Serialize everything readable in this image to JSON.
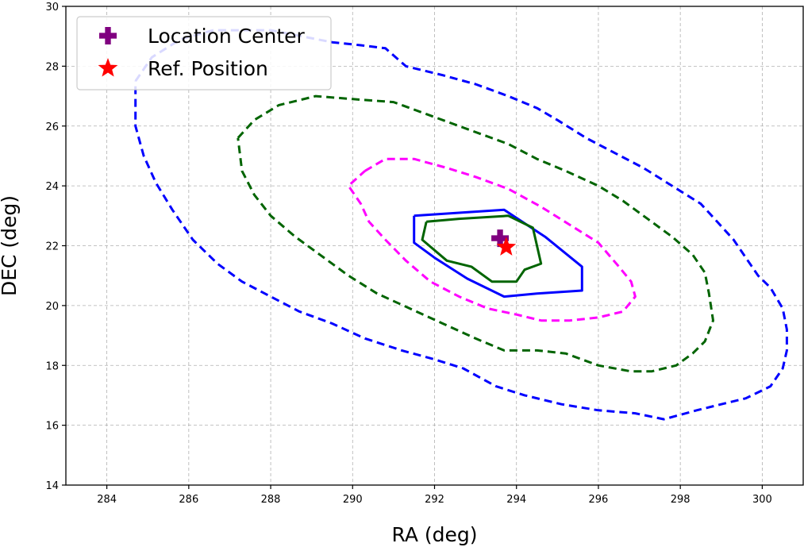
{
  "chart_data": {
    "type": "line",
    "xlabel": "RA (deg)",
    "ylabel": "DEC (deg)",
    "xlim": [
      283,
      301
    ],
    "ylim": [
      14,
      30
    ],
    "xticks": [
      284,
      286,
      288,
      290,
      292,
      294,
      296,
      298,
      300
    ],
    "yticks": [
      14,
      16,
      18,
      20,
      22,
      24,
      26,
      28,
      30
    ],
    "grid": true,
    "legend": {
      "placement": "top-left",
      "entries": [
        {
          "label": "Location Center",
          "marker": "plus",
          "color": "#800080"
        },
        {
          "label": "Ref. Position",
          "marker": "star",
          "color": "#ff0000"
        }
      ]
    },
    "series": [
      {
        "color": "#0000ff",
        "style": "dashed",
        "points": [
          [
            284.7,
            27.5
          ],
          [
            285.1,
            28.3
          ],
          [
            285.8,
            28.9
          ],
          [
            286.6,
            29.2
          ],
          [
            288.0,
            29.2
          ],
          [
            289.5,
            28.8
          ],
          [
            290.2,
            28.7
          ],
          [
            290.8,
            28.6
          ],
          [
            291.3,
            28.0
          ],
          [
            292.2,
            27.7
          ],
          [
            293.0,
            27.4
          ],
          [
            293.8,
            27.0
          ],
          [
            294.5,
            26.6
          ],
          [
            295.0,
            26.2
          ],
          [
            295.7,
            25.6
          ],
          [
            296.4,
            25.1
          ],
          [
            297.1,
            24.6
          ],
          [
            297.8,
            24.0
          ],
          [
            298.5,
            23.4
          ],
          [
            298.9,
            22.8
          ],
          [
            299.3,
            22.2
          ],
          [
            299.6,
            21.6
          ],
          [
            299.9,
            21.0
          ],
          [
            300.2,
            20.6
          ],
          [
            300.5,
            19.9
          ],
          [
            300.6,
            19.2
          ],
          [
            300.6,
            18.5
          ],
          [
            300.5,
            17.9
          ],
          [
            300.2,
            17.3
          ],
          [
            299.6,
            16.9
          ],
          [
            299.0,
            16.7
          ],
          [
            298.4,
            16.5
          ],
          [
            297.6,
            16.2
          ],
          [
            296.9,
            16.4
          ],
          [
            296.0,
            16.5
          ],
          [
            295.1,
            16.7
          ],
          [
            294.2,
            17.0
          ],
          [
            293.5,
            17.3
          ],
          [
            292.7,
            17.9
          ],
          [
            292.0,
            18.2
          ],
          [
            291.2,
            18.5
          ],
          [
            290.3,
            18.9
          ],
          [
            289.5,
            19.4
          ],
          [
            288.7,
            19.8
          ],
          [
            288.0,
            20.3
          ],
          [
            287.3,
            20.8
          ],
          [
            286.7,
            21.4
          ],
          [
            286.1,
            22.2
          ],
          [
            285.6,
            23.2
          ],
          [
            285.2,
            24.1
          ],
          [
            284.9,
            25.0
          ],
          [
            284.7,
            26.0
          ],
          [
            284.7,
            27.0
          ],
          [
            284.7,
            27.5
          ]
        ]
      },
      {
        "color": "#006400",
        "style": "dashed",
        "points": [
          [
            287.2,
            25.6
          ],
          [
            287.6,
            26.2
          ],
          [
            288.2,
            26.7
          ],
          [
            289.1,
            27.0
          ],
          [
            290.0,
            26.9
          ],
          [
            291.0,
            26.8
          ],
          [
            291.8,
            26.4
          ],
          [
            292.6,
            26.0
          ],
          [
            293.2,
            25.7
          ],
          [
            293.8,
            25.4
          ],
          [
            294.5,
            24.9
          ],
          [
            295.2,
            24.5
          ],
          [
            296.0,
            24.0
          ],
          [
            296.6,
            23.5
          ],
          [
            297.2,
            22.9
          ],
          [
            297.8,
            22.3
          ],
          [
            298.3,
            21.7
          ],
          [
            298.6,
            21.1
          ],
          [
            298.7,
            20.4
          ],
          [
            298.8,
            19.5
          ],
          [
            298.6,
            18.8
          ],
          [
            298.3,
            18.4
          ],
          [
            297.9,
            18.0
          ],
          [
            297.3,
            17.8
          ],
          [
            296.8,
            17.8
          ],
          [
            296.0,
            18.0
          ],
          [
            295.2,
            18.4
          ],
          [
            294.5,
            18.5
          ],
          [
            293.7,
            18.5
          ],
          [
            293.0,
            18.9
          ],
          [
            292.2,
            19.4
          ],
          [
            291.4,
            19.9
          ],
          [
            290.6,
            20.4
          ],
          [
            289.9,
            21.0
          ],
          [
            289.2,
            21.7
          ],
          [
            288.6,
            22.3
          ],
          [
            288.0,
            23.0
          ],
          [
            287.6,
            23.7
          ],
          [
            287.3,
            24.5
          ],
          [
            287.2,
            25.6
          ]
        ]
      },
      {
        "color": "#ff00ff",
        "style": "dashed",
        "points": [
          [
            290.3,
            24.5
          ],
          [
            290.8,
            24.9
          ],
          [
            291.5,
            24.9
          ],
          [
            292.3,
            24.6
          ],
          [
            293.0,
            24.3
          ],
          [
            293.8,
            23.9
          ],
          [
            294.6,
            23.3
          ],
          [
            295.3,
            22.7
          ],
          [
            296.0,
            22.1
          ],
          [
            296.5,
            21.3
          ],
          [
            296.8,
            20.8
          ],
          [
            296.9,
            20.3
          ],
          [
            296.6,
            19.8
          ],
          [
            296.0,
            19.6
          ],
          [
            295.3,
            19.5
          ],
          [
            294.6,
            19.5
          ],
          [
            294.0,
            19.7
          ],
          [
            293.3,
            19.9
          ],
          [
            292.6,
            20.3
          ],
          [
            291.9,
            20.8
          ],
          [
            291.3,
            21.5
          ],
          [
            290.8,
            22.2
          ],
          [
            290.4,
            22.8
          ],
          [
            290.2,
            23.4
          ],
          [
            289.9,
            24.0
          ],
          [
            290.3,
            24.5
          ]
        ]
      },
      {
        "color": "#0000ff",
        "style": "solid",
        "points": [
          [
            291.5,
            23.0
          ],
          [
            293.7,
            23.2
          ],
          [
            294.7,
            22.3
          ],
          [
            295.6,
            21.3
          ],
          [
            295.6,
            20.5
          ],
          [
            294.5,
            20.4
          ],
          [
            293.7,
            20.3
          ],
          [
            292.8,
            20.9
          ],
          [
            292.0,
            21.6
          ],
          [
            291.5,
            22.1
          ],
          [
            291.5,
            23.0
          ]
        ]
      },
      {
        "color": "#006400",
        "style": "solid",
        "points": [
          [
            291.8,
            22.8
          ],
          [
            292.6,
            22.9
          ],
          [
            293.8,
            23.0
          ],
          [
            294.4,
            22.6
          ],
          [
            294.6,
            21.4
          ],
          [
            294.2,
            21.2
          ],
          [
            294.0,
            20.8
          ],
          [
            293.4,
            20.8
          ],
          [
            292.9,
            21.3
          ],
          [
            292.3,
            21.5
          ],
          [
            291.7,
            22.2
          ],
          [
            291.8,
            22.8
          ]
        ]
      }
    ],
    "markers": [
      {
        "label": "Location Center",
        "x": 293.6,
        "y": 22.25,
        "marker": "plus",
        "color": "#800080"
      },
      {
        "label": "Ref. Position",
        "x": 293.75,
        "y": 21.95,
        "marker": "star",
        "color": "#ff0000"
      }
    ]
  }
}
